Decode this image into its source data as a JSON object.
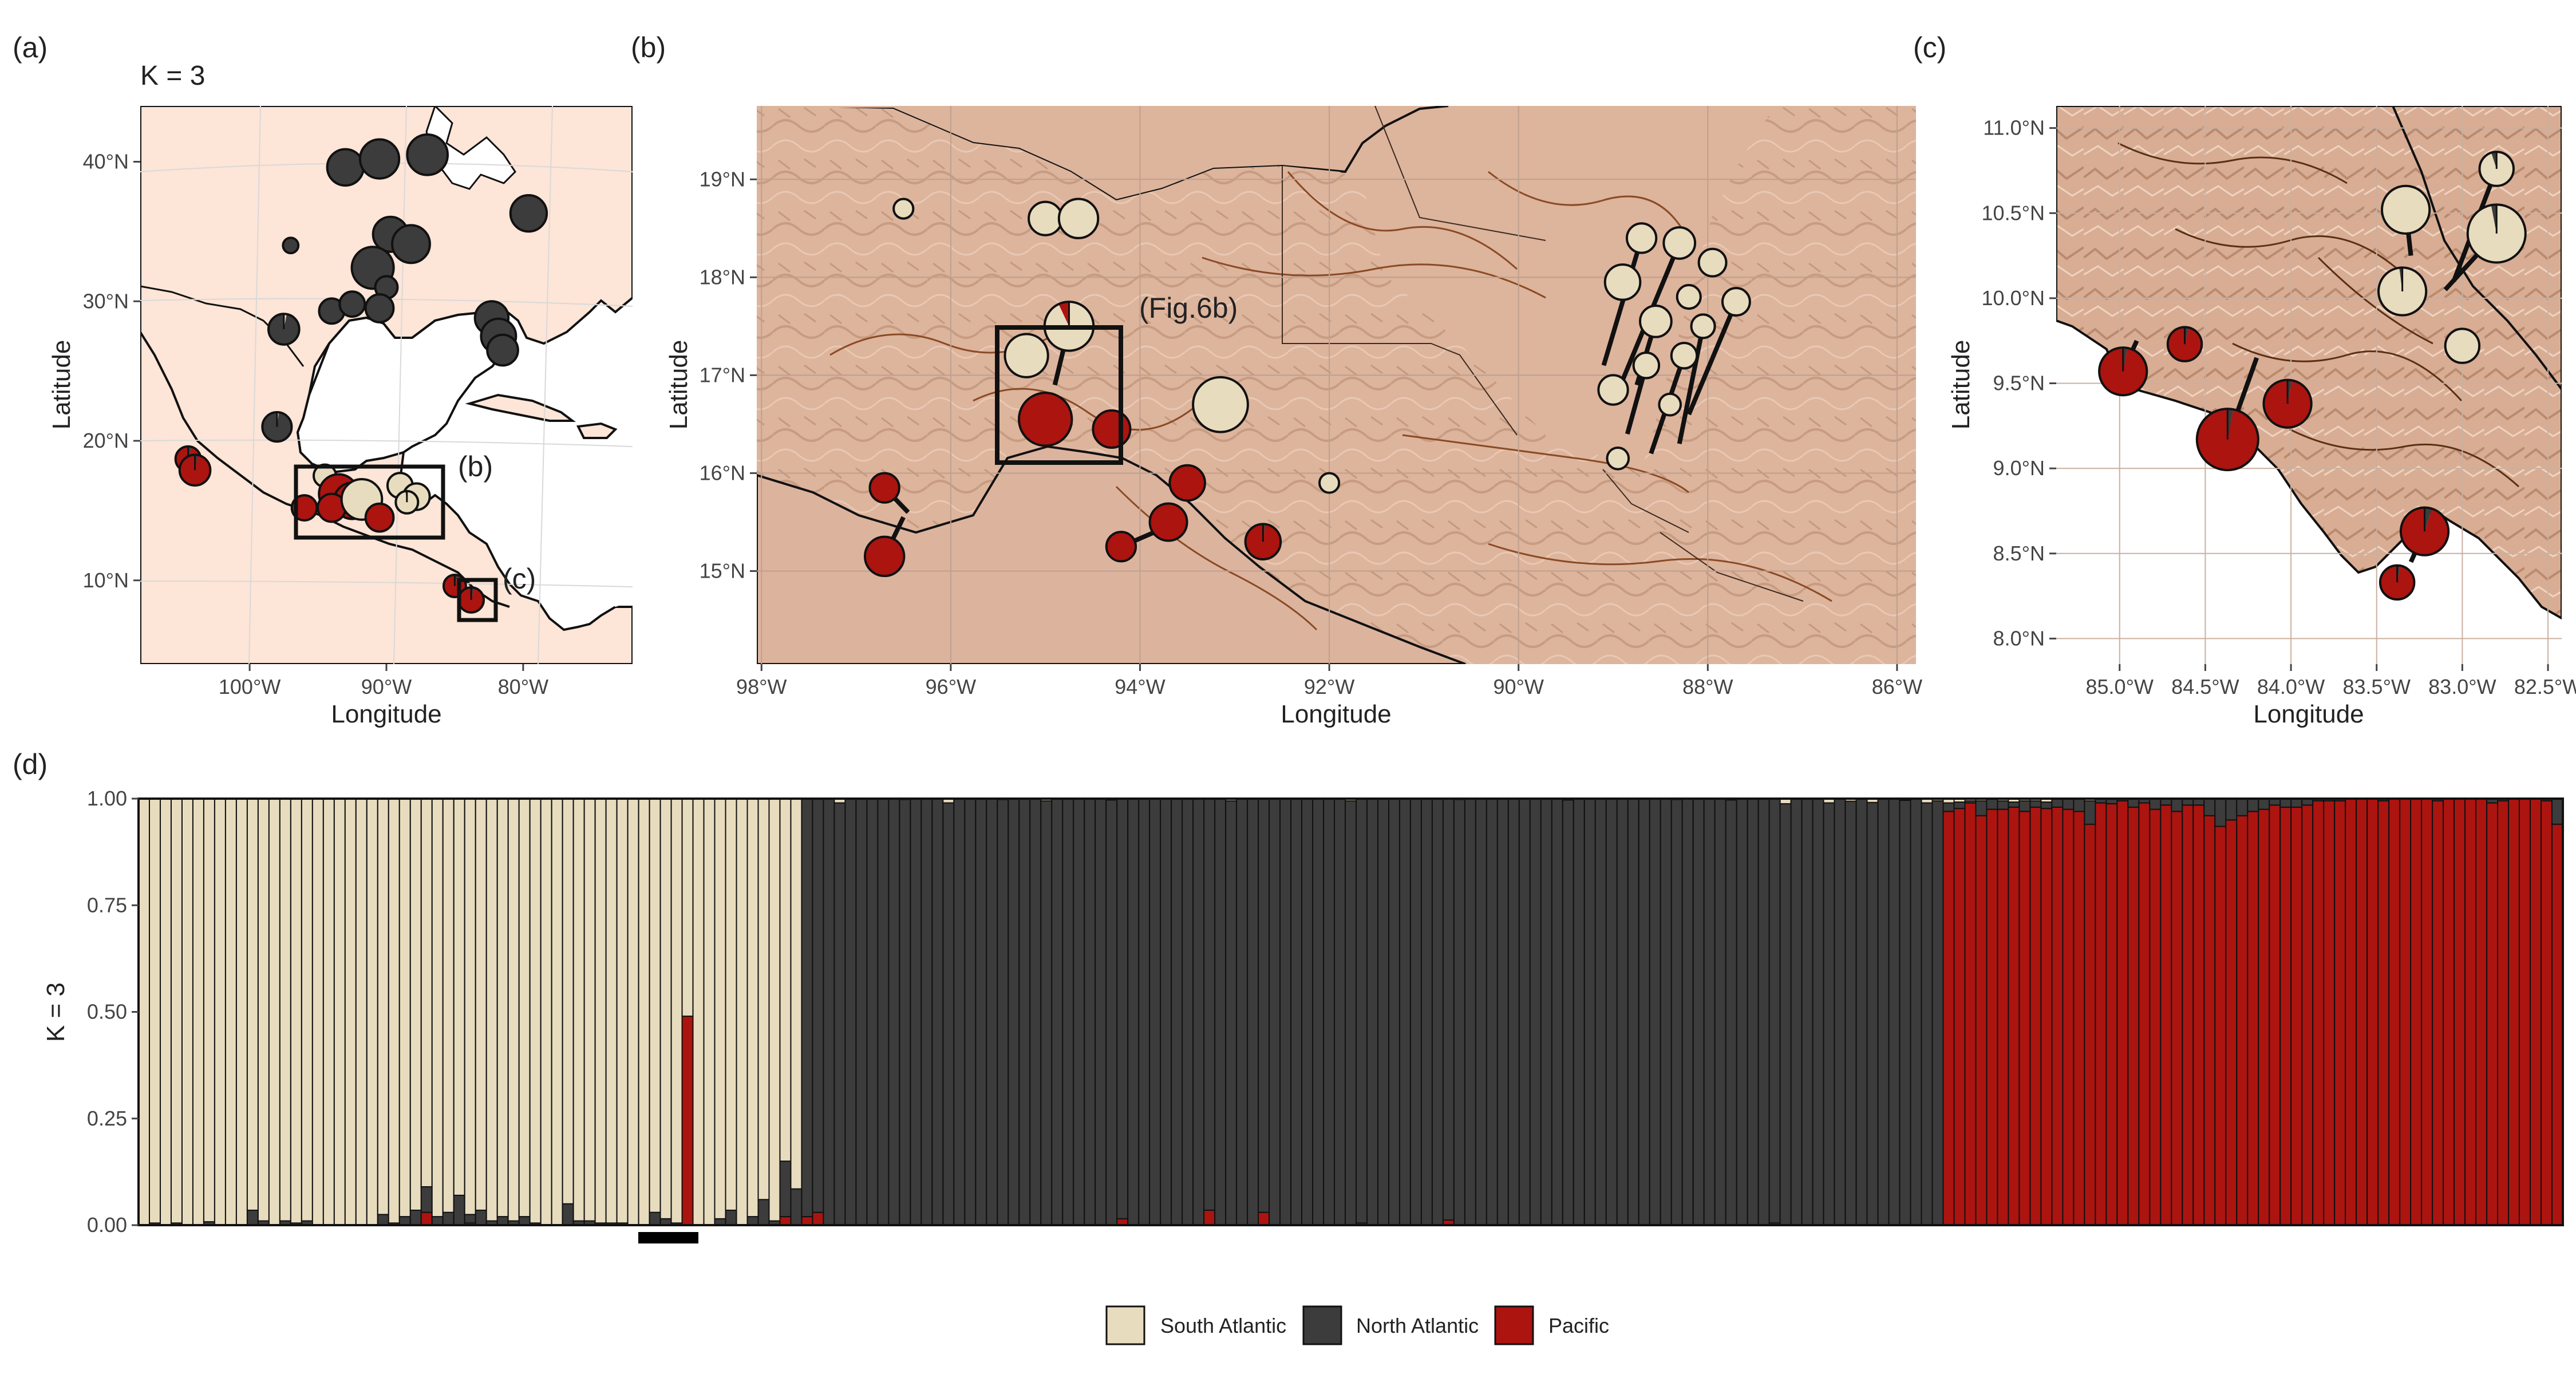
{
  "figure": {
    "panel_labels": [
      "(a)",
      "(b)",
      "(c)",
      "(d)"
    ],
    "k_label": "K =  3",
    "annotations": {
      "box_b": "(b)",
      "box_c": "(c)",
      "fig6b": "(Fig.6b)"
    },
    "colors": {
      "South Atlantic": "#e8dcbf",
      "North Atlantic": "#3c3c3c",
      "Pacific": "#ac1410",
      "land_a": "#fde5d7",
      "land_relief": "#ddb49c",
      "ocean": "#ffffff"
    }
  },
  "chart_data": [
    {
      "id": "a",
      "type": "map",
      "xlabel": "Longitude",
      "ylabel": "Latitude",
      "xticks": [
        "100°W",
        "90°W",
        "80°W"
      ],
      "yticks": [
        "40°N",
        "30°N",
        "20°N",
        "10°N"
      ],
      "xlim": [
        -108,
        -72
      ],
      "ylim": [
        4,
        44
      ],
      "grid": true,
      "pies": [
        {
          "lon": -93,
          "lat": 39.6,
          "r": 1.3,
          "sa": 0,
          "na": 1,
          "pa": 0
        },
        {
          "lon": -90.5,
          "lat": 40.2,
          "r": 1.4,
          "sa": 0,
          "na": 1,
          "pa": 0
        },
        {
          "lon": -87,
          "lat": 40.5,
          "r": 1.45,
          "sa": 0,
          "na": 1,
          "pa": 0
        },
        {
          "lon": -79.6,
          "lat": 36.3,
          "r": 1.3,
          "sa": 0,
          "na": 1,
          "pa": 0
        },
        {
          "lon": -89.7,
          "lat": 34.8,
          "r": 1.25,
          "sa": 0,
          "na": 1,
          "pa": 0
        },
        {
          "lon": -88.2,
          "lat": 34.1,
          "r": 1.35,
          "sa": 0,
          "na": 1,
          "pa": 0
        },
        {
          "lon": -91,
          "lat": 32.4,
          "r": 1.5,
          "sa": 0,
          "na": 1,
          "pa": 0
        },
        {
          "lon": -97,
          "lat": 34,
          "r": 0.55,
          "sa": 0,
          "na": 1,
          "pa": 0
        },
        {
          "lon": -90,
          "lat": 31,
          "r": 0.8,
          "sa": 0,
          "na": 1,
          "pa": 0
        },
        {
          "lon": -97.5,
          "lat": 28,
          "r": 1.1,
          "sa": 0.03,
          "na": 0.97,
          "pa": 0
        },
        {
          "lon": -94,
          "lat": 29.3,
          "r": 0.9,
          "sa": 0,
          "na": 1,
          "pa": 0
        },
        {
          "lon": -92.5,
          "lat": 29.8,
          "r": 0.9,
          "sa": 0,
          "na": 1,
          "pa": 0
        },
        {
          "lon": -90.5,
          "lat": 29.5,
          "r": 1.0,
          "sa": 0,
          "na": 1,
          "pa": 0
        },
        {
          "lon": -82.3,
          "lat": 28.8,
          "r": 1.2,
          "sa": 0,
          "na": 1,
          "pa": 0
        },
        {
          "lon": -81.8,
          "lat": 27.5,
          "r": 1.25,
          "sa": 0,
          "na": 1,
          "pa": 0
        },
        {
          "lon": -81.5,
          "lat": 26.5,
          "r": 1.1,
          "sa": 0,
          "na": 1,
          "pa": 0
        },
        {
          "lon": -98,
          "lat": 21,
          "r": 1.05,
          "sa": 0.02,
          "na": 0.98,
          "pa": 0
        },
        {
          "lon": -104.5,
          "lat": 18.7,
          "r": 0.9,
          "sa": 0,
          "na": 0.05,
          "pa": 0.95
        },
        {
          "lon": -104,
          "lat": 17.9,
          "r": 1.1,
          "sa": 0,
          "na": 0.03,
          "pa": 0.97
        },
        {
          "lon": -94.5,
          "lat": 17.5,
          "r": 0.8,
          "sa": 1,
          "na": 0,
          "pa": 0
        },
        {
          "lon": -93.5,
          "lat": 16.2,
          "r": 1.4,
          "sa": 0,
          "na": 0,
          "pa": 1
        },
        {
          "lon": -92.5,
          "lat": 15.7,
          "r": 1.3,
          "sa": 0,
          "na": 0.05,
          "pa": 0.95
        },
        {
          "lon": -96,
          "lat": 15.2,
          "r": 0.9,
          "sa": 0,
          "na": 0,
          "pa": 1
        },
        {
          "lon": -94,
          "lat": 15.2,
          "r": 1.0,
          "sa": 0,
          "na": 0,
          "pa": 1
        },
        {
          "lon": -91.8,
          "lat": 15.8,
          "r": 1.45,
          "sa": 1,
          "na": 0,
          "pa": 0
        },
        {
          "lon": -90.5,
          "lat": 14.5,
          "r": 1.0,
          "sa": 0,
          "na": 0,
          "pa": 1
        },
        {
          "lon": -89,
          "lat": 16.8,
          "r": 0.9,
          "sa": 1,
          "na": 0,
          "pa": 0
        },
        {
          "lon": -87.8,
          "lat": 16,
          "r": 0.95,
          "sa": 1,
          "na": 0,
          "pa": 0
        },
        {
          "lon": -88.5,
          "lat": 15.6,
          "r": 0.8,
          "sa": 0.98,
          "na": 0.02,
          "pa": 0
        },
        {
          "lon": -85,
          "lat": 9.6,
          "r": 0.8,
          "sa": 0,
          "na": 0.05,
          "pa": 0.95
        },
        {
          "lon": -83.8,
          "lat": 8.6,
          "r": 0.9,
          "sa": 0,
          "na": 0.04,
          "pa": 0.96
        }
      ]
    },
    {
      "id": "b",
      "type": "map",
      "xlabel": "Longitude",
      "ylabel": "Latitude",
      "xticks": [
        "98°W",
        "96°W",
        "94°W",
        "92°W",
        "90°W",
        "88°W",
        "86°W"
      ],
      "yticks": [
        "19°N",
        "18°N",
        "17°N",
        "16°N",
        "15°N"
      ],
      "xlim": [
        -98.05,
        -85.8
      ],
      "ylim": [
        14.05,
        19.75
      ],
      "grid": true,
      "pies": [
        {
          "lon": -96.5,
          "lat": 18.7,
          "r": 0.1,
          "sa": 1,
          "na": 0,
          "pa": 0
        },
        {
          "lon": -95.0,
          "lat": 18.6,
          "r": 0.17,
          "sa": 1,
          "na": 0,
          "pa": 0
        },
        {
          "lon": -94.65,
          "lat": 18.6,
          "r": 0.2,
          "sa": 1,
          "na": 0,
          "pa": 0
        },
        {
          "lon": -95.2,
          "lat": 17.2,
          "r": 0.22,
          "sa": 1,
          "na": 0,
          "pa": 0
        },
        {
          "lon": -94.75,
          "lat": 17.5,
          "r": 0.25,
          "sa": 0.93,
          "na": 0,
          "pa": 0.07
        },
        {
          "lon": -95.0,
          "lat": 16.55,
          "r": 0.27,
          "sa": 0,
          "na": 0,
          "pa": 1
        },
        {
          "lon": -94.3,
          "lat": 16.45,
          "r": 0.19,
          "sa": 0,
          "na": 0,
          "pa": 1
        },
        {
          "lon": -96.7,
          "lat": 15.85,
          "r": 0.15,
          "sa": 0,
          "na": 0,
          "pa": 1
        },
        {
          "lon": -96.7,
          "lat": 15.15,
          "r": 0.2,
          "sa": 0,
          "na": 0,
          "pa": 1
        },
        {
          "lon": -93.5,
          "lat": 15.9,
          "r": 0.18,
          "sa": 0,
          "na": 0,
          "pa": 1
        },
        {
          "lon": -93.7,
          "lat": 15.5,
          "r": 0.19,
          "sa": 0,
          "na": 0,
          "pa": 1
        },
        {
          "lon": -94.2,
          "lat": 15.25,
          "r": 0.15,
          "sa": 0,
          "na": 0,
          "pa": 1
        },
        {
          "lon": -92.7,
          "lat": 15.3,
          "r": 0.18,
          "sa": 0,
          "na": 0.02,
          "pa": 0.98
        },
        {
          "lon": -93.15,
          "lat": 16.7,
          "r": 0.28,
          "sa": 1,
          "na": 0,
          "pa": 0
        },
        {
          "lon": -92.0,
          "lat": 15.9,
          "r": 0.1,
          "sa": 1,
          "na": 0,
          "pa": 0
        },
        {
          "lon": -88.7,
          "lat": 18.4,
          "r": 0.15,
          "sa": 1,
          "na": 0,
          "pa": 0
        },
        {
          "lon": -88.3,
          "lat": 18.35,
          "r": 0.16,
          "sa": 1,
          "na": 0,
          "pa": 0
        },
        {
          "lon": -88.9,
          "lat": 17.95,
          "r": 0.18,
          "sa": 1,
          "na": 0,
          "pa": 0
        },
        {
          "lon": -88.55,
          "lat": 17.55,
          "r": 0.16,
          "sa": 1,
          "na": 0,
          "pa": 0
        },
        {
          "lon": -88.2,
          "lat": 17.8,
          "r": 0.12,
          "sa": 1,
          "na": 0,
          "pa": 0
        },
        {
          "lon": -87.95,
          "lat": 18.15,
          "r": 0.14,
          "sa": 1,
          "na": 0,
          "pa": 0
        },
        {
          "lon": -88.65,
          "lat": 17.1,
          "r": 0.13,
          "sa": 1,
          "na": 0,
          "pa": 0
        },
        {
          "lon": -88.25,
          "lat": 17.2,
          "r": 0.13,
          "sa": 1,
          "na": 0,
          "pa": 0
        },
        {
          "lon": -88.05,
          "lat": 17.5,
          "r": 0.12,
          "sa": 1,
          "na": 0,
          "pa": 0
        },
        {
          "lon": -87.7,
          "lat": 17.75,
          "r": 0.14,
          "sa": 1,
          "na": 0,
          "pa": 0
        },
        {
          "lon": -89.0,
          "lat": 16.85,
          "r": 0.15,
          "sa": 1,
          "na": 0,
          "pa": 0
        },
        {
          "lon": -88.4,
          "lat": 16.7,
          "r": 0.11,
          "sa": 1,
          "na": 0,
          "pa": 0
        },
        {
          "lon": -88.95,
          "lat": 16.15,
          "r": 0.11,
          "sa": 1,
          "na": 0,
          "pa": 0
        }
      ]
    },
    {
      "id": "c",
      "type": "map",
      "xlabel": "Longitude",
      "ylabel": "Latitude",
      "xticks": [
        "85.0°W",
        "84.5°W",
        "84.0°W",
        "83.5°W",
        "83.0°W",
        "82.5°W"
      ],
      "yticks": [
        "11.0°N",
        "10.5°N",
        "10.0°N",
        "9.5°N",
        "9.0°N",
        "8.5°N",
        "8.0°N"
      ],
      "xlim": [
        -85.37,
        -82.42
      ],
      "ylim": [
        7.85,
        11.13
      ],
      "grid": true,
      "pies": [
        {
          "lon": -84.98,
          "lat": 9.57,
          "r": 0.14,
          "sa": 0,
          "na": 0.03,
          "pa": 0.97
        },
        {
          "lon": -84.62,
          "lat": 9.73,
          "r": 0.1,
          "sa": 0,
          "na": 0.04,
          "pa": 0.96
        },
        {
          "lon": -84.37,
          "lat": 9.17,
          "r": 0.18,
          "sa": 0,
          "na": 0.03,
          "pa": 0.97
        },
        {
          "lon": -84.02,
          "lat": 9.38,
          "r": 0.14,
          "sa": 0,
          "na": 0.03,
          "pa": 0.97
        },
        {
          "lon": -83.33,
          "lat": 10.52,
          "r": 0.14,
          "sa": 1,
          "na": 0,
          "pa": 0
        },
        {
          "lon": -83.35,
          "lat": 10.04,
          "r": 0.14,
          "sa": 0.98,
          "na": 0.02,
          "pa": 0
        },
        {
          "lon": -82.8,
          "lat": 10.38,
          "r": 0.17,
          "sa": 0.97,
          "na": 0.03,
          "pa": 0
        },
        {
          "lon": -82.8,
          "lat": 10.76,
          "r": 0.1,
          "sa": 0.95,
          "na": 0.05,
          "pa": 0
        },
        {
          "lon": -83.0,
          "lat": 9.72,
          "r": 0.1,
          "sa": 1,
          "na": 0,
          "pa": 0
        },
        {
          "lon": -83.22,
          "lat": 8.63,
          "r": 0.14,
          "sa": 0,
          "na": 0.05,
          "pa": 0.95
        },
        {
          "lon": -83.38,
          "lat": 8.33,
          "r": 0.1,
          "sa": 0,
          "na": 0.03,
          "pa": 0.97
        }
      ]
    },
    {
      "id": "d",
      "type": "bar",
      "stacked": true,
      "ylabel": "K = 3",
      "yticks": [
        "0.00",
        "0.25",
        "0.50",
        "0.75",
        "1.00"
      ],
      "ylim": [
        0,
        1
      ],
      "legend": {
        "position": "bottom",
        "entries": [
          "South Atlantic",
          "North Atlantic",
          "Pacific"
        ]
      },
      "series": [
        {
          "name": "South Atlantic",
          "color": "#e8dcbf"
        },
        {
          "name": "North Atlantic",
          "color": "#3c3c3c"
        },
        {
          "name": "Pacific",
          "color": "#ac1410"
        }
      ],
      "n_individuals": 223,
      "group_south_atlantic": {
        "count": 61,
        "minor_north_atlantic": {
          "1": 0.005,
          "3": 0.005,
          "6": 0.008,
          "10": 0.035,
          "11": 0.01,
          "13": 0.01,
          "14": 0.005,
          "15": 0.01,
          "22": 0.025,
          "23": 0.005,
          "24": 0.02,
          "25": 0.035,
          "26": 0.06,
          "27": 0.02,
          "28": 0.03,
          "29": 0.07,
          "30": 0.02,
          "31": 0.035,
          "32": 0.01,
          "33": 0.02,
          "34": 0.01,
          "35": 0.02,
          "36": 0.005,
          "39": 0.05,
          "40": 0.01,
          "41": 0.01,
          "42": 0.005,
          "43": 0.005,
          "44": 0.005,
          "47": 0.03,
          "48": 0.015,
          "49": 0.005,
          "53": 0.015,
          "54": 0.035,
          "56": 0.02,
          "57": 0.06,
          "58": 0.01,
          "59": 0.13,
          "60": 0.085
        },
        "minor_pacific": {
          "26": 0.03,
          "30": 0.005,
          "59": 0.02
        },
        "pacific_admixed": {
          "index": 50,
          "value": 0.49
        }
      },
      "group_north_atlantic": {
        "count": 105,
        "minor_south_atlantic": {
          "3": 0.01,
          "9": 0.002,
          "13": 0.01,
          "18": 0.002,
          "22": 0.005,
          "28": 0.003,
          "39": 0.005,
          "50": 0.005,
          "60": 0.002,
          "70": 0.003,
          "80": 0.002,
          "85": 0.003,
          "90": 0.012,
          "94": 0.01,
          "96": 0.006,
          "98": 0.009,
          "101": 0.004,
          "103": 0.01,
          "104": 0.005
        },
        "minor_pacific": {
          "0": 0.02,
          "1": 0.03,
          "29": 0.015,
          "37": 0.035,
          "42": 0.03,
          "51": 0.005,
          "59": 0.012,
          "89": 0.005
        }
      },
      "group_pacific": {
        "count": 57,
        "minor_north_atlantic": {
          "0": 0.02,
          "1": 0.015,
          "2": 0.005,
          "3": 0.035,
          "4": 0.025,
          "5": 0.02,
          "6": 0.012,
          "7": 0.025,
          "8": 0.015,
          "9": 0.015,
          "10": 0.02,
          "11": 0.025,
          "12": 0.03,
          "13": 0.055,
          "14": 0.01,
          "15": 0.012,
          "16": 0.005,
          "17": 0.02,
          "18": 0.01,
          "19": 0.025,
          "20": 0.015,
          "21": 0.03,
          "22": 0.015,
          "23": 0.015,
          "24": 0.04,
          "25": 0.065,
          "26": 0.05,
          "27": 0.04,
          "28": 0.03,
          "29": 0.025,
          "30": 0.015,
          "31": 0.02,
          "32": 0.02,
          "33": 0.015,
          "34": 0.005,
          "35": 0.005,
          "36": 0.005,
          "40": 0.005,
          "45": 0.005,
          "50": 0.01,
          "51": 0.005,
          "55": 0.005,
          "56": 0.06
        },
        "minor_south_atlantic": {
          "0": 0.01,
          "1": 0.008,
          "2": 0.005,
          "3": 0.005,
          "5": 0.005,
          "6": 0.008,
          "7": 0.005,
          "8": 0.005,
          "9": 0.008,
          "13": 0.005
        }
      }
    }
  ]
}
